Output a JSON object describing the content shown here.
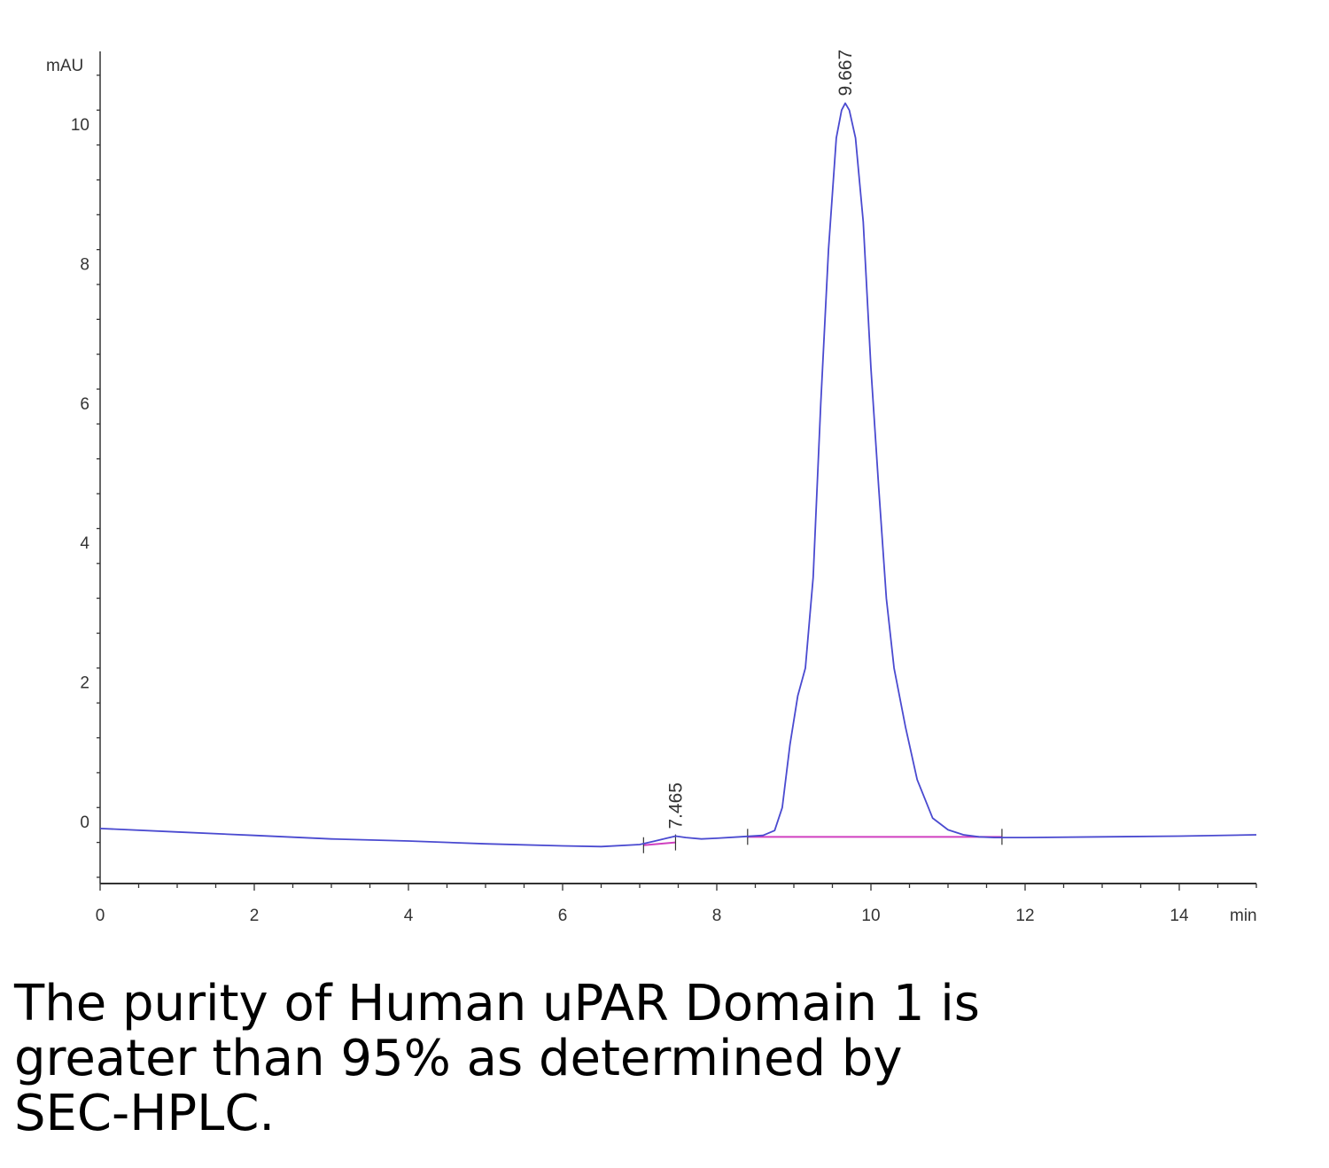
{
  "chart_data": {
    "type": "line",
    "xlabel": "min",
    "ylabel": "mAU",
    "xlim": [
      0,
      15
    ],
    "ylim": [
      -0.9,
      11.0
    ],
    "x_ticks": [
      0,
      2,
      4,
      6,
      8,
      10,
      12,
      14
    ],
    "x_tick_labels": [
      "0",
      "2",
      "4",
      "6",
      "8",
      "10",
      "12",
      "14"
    ],
    "y_ticks": [
      0,
      2,
      4,
      6,
      8,
      10
    ],
    "y_tick_labels": [
      "0",
      "2",
      "4",
      "6",
      "8",
      "10"
    ],
    "grid": false,
    "series": [
      {
        "color": "#4a4ad0",
        "x": [
          0.0,
          1.0,
          2.0,
          3.0,
          4.0,
          5.0,
          6.0,
          6.5,
          7.0,
          7.2,
          7.35,
          7.465,
          7.6,
          7.8,
          8.0,
          8.3,
          8.6,
          8.75,
          8.85,
          8.95,
          9.05,
          9.15,
          9.25,
          9.35,
          9.45,
          9.55,
          9.62,
          9.667,
          9.72,
          9.8,
          9.9,
          10.0,
          10.1,
          10.2,
          10.3,
          10.45,
          10.6,
          10.8,
          11.0,
          11.2,
          11.4,
          11.6,
          12.0,
          13.0,
          14.0,
          15.0
        ],
        "y": [
          -0.1,
          -0.15,
          -0.2,
          -0.25,
          -0.28,
          -0.32,
          -0.35,
          -0.36,
          -0.33,
          -0.28,
          -0.24,
          -0.21,
          -0.23,
          -0.25,
          -0.24,
          -0.22,
          -0.2,
          -0.13,
          0.2,
          1.1,
          1.8,
          2.2,
          3.5,
          6.0,
          8.2,
          9.8,
          10.2,
          10.3,
          10.2,
          9.8,
          8.6,
          6.5,
          4.8,
          3.2,
          2.2,
          1.35,
          0.6,
          0.05,
          -0.12,
          -0.19,
          -0.22,
          -0.23,
          -0.23,
          -0.22,
          -0.21,
          -0.19
        ]
      }
    ],
    "baselines": [
      {
        "color": "#d040c0",
        "x": [
          7.05,
          7.465
        ],
        "y": [
          -0.34,
          -0.3
        ]
      },
      {
        "color": "#d040c0",
        "x": [
          8.4,
          11.7
        ],
        "y": [
          -0.22,
          -0.22
        ]
      }
    ],
    "annotations": [
      {
        "text": "7.465",
        "x": 7.465,
        "y": -0.21
      },
      {
        "text": "9.667",
        "x": 9.667,
        "y": 10.3
      }
    ]
  },
  "caption": "The purity of Human uPAR Domain 1 is greater than 95% as determined by SEC-HPLC."
}
